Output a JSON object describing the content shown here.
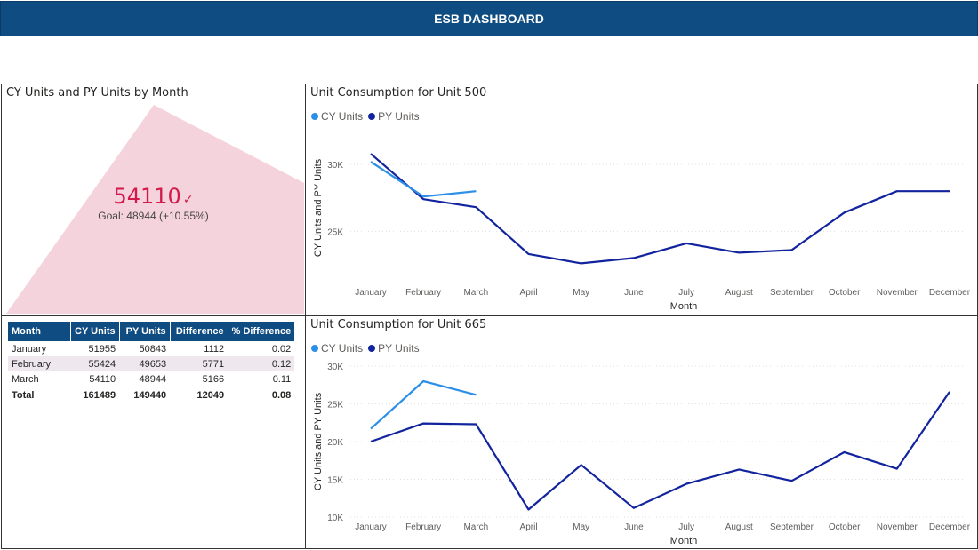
{
  "header": {
    "title": "ESB DASHBOARD"
  },
  "kpi": {
    "title": "CY Units and PY Units by Month",
    "value": "54110",
    "check": "✓",
    "goal": "Goal: 48944 (+10.55%)",
    "colors": {
      "value": "#d11a4a",
      "area": "#f5d3dd"
    }
  },
  "table": {
    "columns": [
      "Month",
      "CY Units",
      "PY Units",
      "Difference",
      "% Difference"
    ],
    "rows": [
      [
        "January",
        "51955",
        "50843",
        "1112",
        "0.02"
      ],
      [
        "February",
        "55424",
        "49653",
        "5771",
        "0.12"
      ],
      [
        "March",
        "54110",
        "48944",
        "5166",
        "0.11"
      ]
    ],
    "total": [
      "Total",
      "161489",
      "149440",
      "12049",
      "0.08"
    ]
  },
  "chart_data": [
    {
      "type": "line",
      "title": "Unit Consumption for Unit 500",
      "xlabel": "Month",
      "ylabel": "CY Units and PY Units",
      "categories": [
        "January",
        "February",
        "March",
        "April",
        "May",
        "June",
        "July",
        "August",
        "September",
        "October",
        "November",
        "December"
      ],
      "yticks": [
        25000,
        30000
      ],
      "ytick_labels": [
        "25K",
        "30K"
      ],
      "ylim": [
        21500,
        32000
      ],
      "legend": "top-left",
      "grid": true,
      "series": [
        {
          "name": "CY Units",
          "color": "#2b8fe8",
          "values": [
            30200,
            27600,
            28000,
            null,
            null,
            null,
            null,
            null,
            null,
            null,
            null,
            null
          ]
        },
        {
          "name": "PY Units",
          "color": "#12239e",
          "values": [
            30800,
            27400,
            26800,
            23300,
            22600,
            23000,
            24100,
            23400,
            23600,
            26400,
            28000,
            28000
          ]
        }
      ]
    },
    {
      "type": "line",
      "title": "Unit Consumption for Unit 665",
      "xlabel": "Month",
      "ylabel": "CY Units and PY Units",
      "categories": [
        "January",
        "February",
        "March",
        "April",
        "May",
        "June",
        "July",
        "August",
        "September",
        "October",
        "November",
        "December"
      ],
      "yticks": [
        10000,
        15000,
        20000,
        25000,
        30000
      ],
      "ytick_labels": [
        "10K",
        "15K",
        "20K",
        "25K",
        "30K"
      ],
      "ylim": [
        10000,
        30000
      ],
      "legend": "top-left",
      "grid": true,
      "series": [
        {
          "name": "CY Units",
          "color": "#2b8fe8",
          "values": [
            21700,
            28000,
            26200,
            null,
            null,
            null,
            null,
            null,
            null,
            null,
            null,
            null
          ]
        },
        {
          "name": "PY Units",
          "color": "#12239e",
          "values": [
            20000,
            22400,
            22300,
            11000,
            16900,
            11200,
            14400,
            16300,
            14800,
            18600,
            16400,
            26600
          ]
        }
      ]
    }
  ]
}
